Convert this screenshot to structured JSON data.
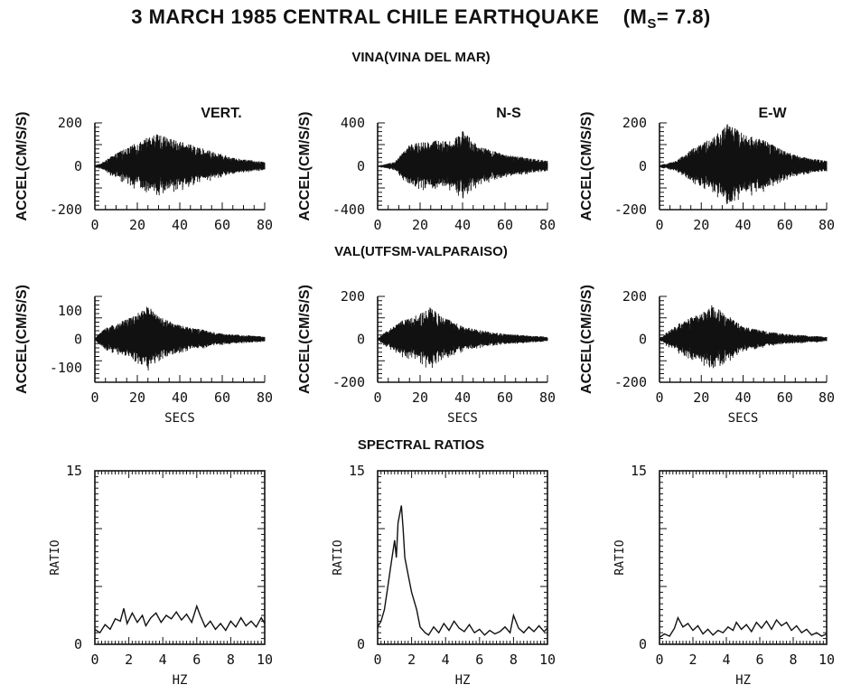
{
  "title": {
    "text": "3 MARCH 1985 CENTRAL CHILE EARTHQUAKE",
    "magnitude_prefix": "(M",
    "magnitude_sub": "S",
    "magnitude_suffix": "= 7.8)"
  },
  "sections": {
    "vina": "VINA(VINA DEL MAR)",
    "val": "VAL(UTFSM-VALPARAISO)",
    "spectral": "SPECTRAL RATIOS"
  },
  "colors": {
    "ink": "#111111",
    "background": "#ffffff"
  },
  "chart_data": [
    {
      "id": "vina-vert",
      "type": "line",
      "station": "VINA",
      "component": "VERT.",
      "ylabel": "ACCEL(CM/S/S)",
      "xlabel": "",
      "xlim": [
        0,
        80
      ],
      "ylim": [
        -200,
        200
      ],
      "xticks": [
        0,
        20,
        40,
        60,
        80
      ],
      "yticks": [
        -200,
        0,
        200
      ],
      "envelope": {
        "t": [
          0,
          3,
          10,
          20,
          28,
          35,
          45,
          55,
          65,
          80
        ],
        "amp": [
          5,
          15,
          60,
          110,
          150,
          130,
          100,
          70,
          40,
          20
        ]
      }
    },
    {
      "id": "vina-ns",
      "type": "line",
      "station": "VINA",
      "component": "N-S",
      "ylabel": "ACCEL(CM/S/S)",
      "xlabel": "",
      "xlim": [
        0,
        80
      ],
      "ylim": [
        -400,
        400
      ],
      "xticks": [
        0,
        20,
        40,
        60,
        80
      ],
      "yticks": [
        -400,
        0,
        400
      ],
      "envelope": {
        "t": [
          0,
          8,
          15,
          20,
          28,
          35,
          40,
          48,
          60,
          80
        ],
        "amp": [
          5,
          40,
          200,
          220,
          240,
          230,
          330,
          180,
          110,
          50
        ]
      }
    },
    {
      "id": "vina-ew",
      "type": "line",
      "station": "VINA",
      "component": "E-W",
      "ylabel": "ACCEL(CM/S/S)",
      "xlabel": "",
      "xlim": [
        0,
        80
      ],
      "ylim": [
        -200,
        200
      ],
      "xticks": [
        0,
        20,
        40,
        60,
        80
      ],
      "yticks": [
        -200,
        0,
        200
      ],
      "envelope": {
        "t": [
          0,
          8,
          15,
          25,
          33,
          40,
          50,
          60,
          70,
          80
        ],
        "amp": [
          5,
          25,
          80,
          130,
          200,
          150,
          120,
          70,
          40,
          25
        ]
      }
    },
    {
      "id": "val-vert",
      "type": "line",
      "station": "VAL",
      "component": "VERT.",
      "ylabel": "ACCEL(CM/S/S)",
      "xlabel": "SECS",
      "xlim": [
        0,
        80
      ],
      "ylim": [
        -150,
        150
      ],
      "xticks": [
        0,
        20,
        40,
        60,
        80
      ],
      "yticks": [
        -100,
        0,
        100
      ],
      "envelope": {
        "t": [
          0,
          5,
          12,
          20,
          25,
          30,
          40,
          50,
          60,
          80
        ],
        "amp": [
          5,
          40,
          60,
          90,
          120,
          80,
          50,
          35,
          20,
          10
        ]
      }
    },
    {
      "id": "val-ns",
      "type": "line",
      "station": "VAL",
      "component": "N-S",
      "ylabel": "ACCEL(CM/S/S)",
      "xlabel": "SECS",
      "xlim": [
        0,
        80
      ],
      "ylim": [
        -200,
        200
      ],
      "xticks": [
        0,
        20,
        40,
        60,
        80
      ],
      "yticks": [
        -200,
        0,
        200
      ],
      "envelope": {
        "t": [
          0,
          5,
          12,
          20,
          25,
          30,
          40,
          50,
          60,
          80
        ],
        "amp": [
          5,
          45,
          90,
          120,
          150,
          110,
          60,
          40,
          25,
          12
        ]
      }
    },
    {
      "id": "val-ew",
      "type": "line",
      "station": "VAL",
      "component": "E-W",
      "ylabel": "ACCEL(CM/S/S)",
      "xlabel": "SECS",
      "xlim": [
        0,
        80
      ],
      "ylim": [
        -200,
        200
      ],
      "xticks": [
        0,
        20,
        40,
        60,
        80
      ],
      "yticks": [
        -200,
        0,
        200
      ],
      "envelope": {
        "t": [
          0,
          5,
          12,
          20,
          25,
          30,
          40,
          50,
          60,
          80
        ],
        "amp": [
          5,
          45,
          90,
          120,
          160,
          130,
          60,
          40,
          25,
          12
        ]
      }
    },
    {
      "id": "ratio-vert",
      "type": "line",
      "series_label": "SPECTRAL RATIOS",
      "component": "VERT.",
      "ylabel": "RATIO",
      "xlabel": "HZ",
      "xlim": [
        0,
        10
      ],
      "ylim": [
        0,
        15
      ],
      "xticks": [
        0,
        2,
        4,
        6,
        8,
        10
      ],
      "yticks": [
        0,
        15
      ],
      "x": [
        0,
        0.3,
        0.6,
        0.9,
        1.2,
        1.5,
        1.7,
        1.9,
        2.2,
        2.5,
        2.8,
        3.0,
        3.3,
        3.6,
        3.9,
        4.2,
        4.5,
        4.8,
        5.1,
        5.4,
        5.7,
        6.0,
        6.2,
        6.5,
        6.8,
        7.1,
        7.4,
        7.7,
        8.0,
        8.3,
        8.6,
        8.9,
        9.2,
        9.5,
        9.8,
        10
      ],
      "y": [
        1.3,
        1.0,
        1.7,
        1.3,
        2.2,
        2.0,
        3.1,
        1.8,
        2.7,
        1.9,
        2.5,
        1.6,
        2.3,
        2.7,
        1.9,
        2.5,
        2.2,
        2.8,
        2.1,
        2.6,
        1.9,
        3.3,
        2.5,
        1.5,
        2.0,
        1.3,
        1.8,
        1.2,
        2.0,
        1.5,
        2.3,
        1.6,
        2.0,
        1.5,
        2.3,
        1.8
      ]
    },
    {
      "id": "ratio-ns",
      "type": "line",
      "series_label": "SPECTRAL RATIOS",
      "component": "N-S",
      "ylabel": "RATIO",
      "xlabel": "HZ",
      "xlim": [
        0,
        10
      ],
      "ylim": [
        0,
        15
      ],
      "xticks": [
        0,
        2,
        4,
        6,
        8,
        10
      ],
      "yticks": [
        0,
        15
      ],
      "x": [
        0,
        0.2,
        0.4,
        0.6,
        0.8,
        1.0,
        1.1,
        1.2,
        1.4,
        1.5,
        1.6,
        1.8,
        2.0,
        2.3,
        2.5,
        2.8,
        3.0,
        3.3,
        3.6,
        3.9,
        4.2,
        4.5,
        4.8,
        5.1,
        5.4,
        5.7,
        6.0,
        6.3,
        6.6,
        6.9,
        7.2,
        7.5,
        7.8,
        8.0,
        8.3,
        8.6,
        8.9,
        9.2,
        9.5,
        9.8,
        10
      ],
      "y": [
        1.5,
        2.0,
        3.0,
        5.0,
        7.0,
        9.0,
        7.5,
        10.5,
        12.0,
        10.0,
        7.5,
        6.0,
        4.5,
        3.0,
        1.5,
        1.0,
        0.8,
        1.5,
        1.0,
        1.8,
        1.2,
        2.0,
        1.4,
        1.1,
        1.7,
        1.0,
        1.3,
        0.8,
        1.2,
        0.9,
        1.1,
        1.5,
        1.0,
        2.5,
        1.4,
        1.0,
        1.5,
        1.1,
        1.6,
        1.1,
        1.4
      ]
    },
    {
      "id": "ratio-ew",
      "type": "line",
      "series_label": "SPECTRAL RATIOS",
      "component": "E-W",
      "ylabel": "RATIO",
      "xlabel": "HZ",
      "xlim": [
        0,
        10
      ],
      "ylim": [
        0,
        15
      ],
      "xticks": [
        0,
        2,
        4,
        6,
        8,
        10
      ],
      "yticks": [
        0,
        15
      ],
      "x": [
        0,
        0.3,
        0.6,
        0.9,
        1.1,
        1.4,
        1.7,
        2.0,
        2.3,
        2.6,
        2.9,
        3.2,
        3.5,
        3.8,
        4.1,
        4.4,
        4.6,
        4.9,
        5.2,
        5.5,
        5.8,
        6.1,
        6.4,
        6.7,
        7.0,
        7.3,
        7.6,
        7.9,
        8.2,
        8.5,
        8.8,
        9.1,
        9.4,
        9.7,
        10
      ],
      "y": [
        0.6,
        0.9,
        0.7,
        1.4,
        2.3,
        1.5,
        1.8,
        1.2,
        1.6,
        0.9,
        1.3,
        0.8,
        1.2,
        1.0,
        1.5,
        1.2,
        1.9,
        1.3,
        1.7,
        1.1,
        1.9,
        1.4,
        2.0,
        1.3,
        2.1,
        1.6,
        1.9,
        1.2,
        1.6,
        1.0,
        1.3,
        0.8,
        1.0,
        0.7,
        0.9
      ]
    }
  ]
}
